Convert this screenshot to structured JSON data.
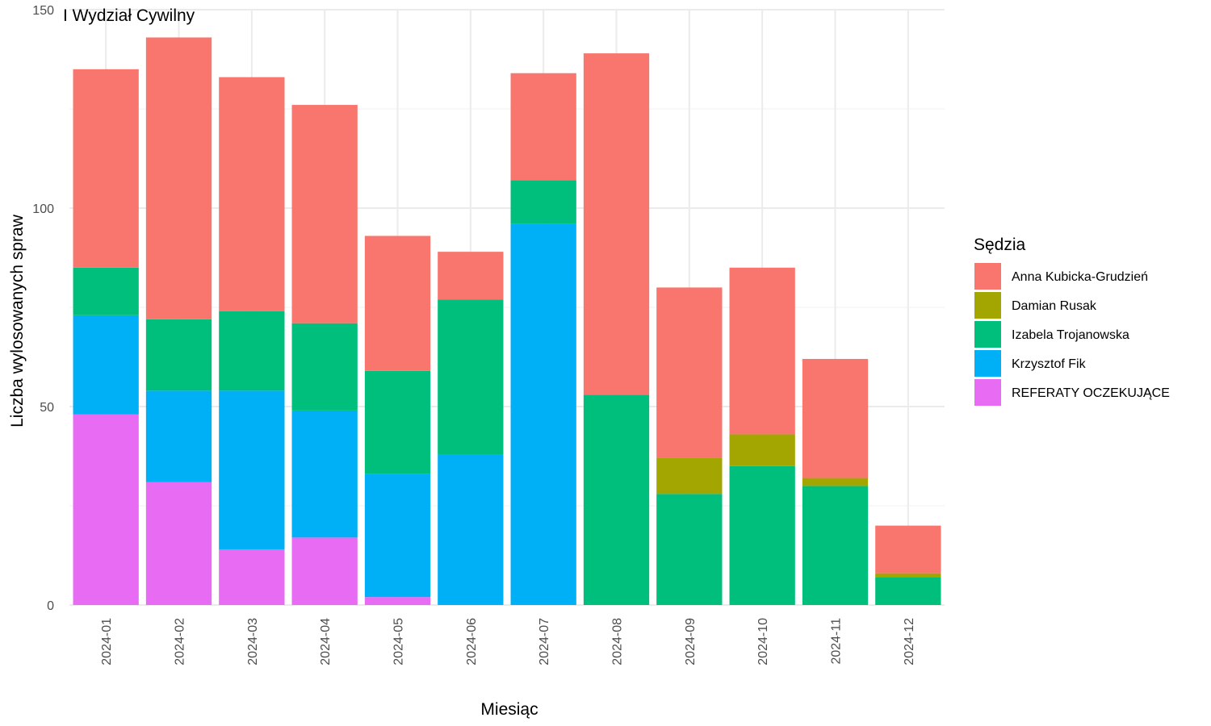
{
  "chart_data": {
    "type": "bar",
    "stacked": true,
    "title": "I Wydział Cywilny",
    "xlabel": "Miesiąc",
    "ylabel": "Liczba wylosowanych spraw",
    "ylim": [
      0,
      150
    ],
    "yticks": [
      0,
      50,
      100,
      150
    ],
    "grid": true,
    "legend_position": "right",
    "legend_title": "Sędzia",
    "categories": [
      "2024-01",
      "2024-02",
      "2024-03",
      "2024-04",
      "2024-05",
      "2024-06",
      "2024-07",
      "2024-08",
      "2024-09",
      "2024-10",
      "2024-11",
      "2024-12"
    ],
    "series": [
      {
        "name": "REFERATY OCZEKUJĄCE",
        "color": "#E76BF3",
        "values": [
          48,
          31,
          14,
          17,
          2,
          0,
          0,
          0,
          0,
          0,
          0,
          0
        ]
      },
      {
        "name": "Krzysztof Fik",
        "color": "#00B0F6",
        "values": [
          25,
          23,
          40,
          32,
          31,
          38,
          96,
          0,
          0,
          0,
          0,
          0
        ]
      },
      {
        "name": "Izabela Trojanowska",
        "color": "#00BF7D",
        "values": [
          12,
          18,
          20,
          22,
          26,
          39,
          11,
          53,
          28,
          35,
          30,
          7
        ]
      },
      {
        "name": "Damian Rusak",
        "color": "#A3A500",
        "values": [
          0,
          0,
          0,
          0,
          0,
          0,
          0,
          0,
          9,
          8,
          2,
          1
        ]
      },
      {
        "name": "Anna Kubicka-Grudzień",
        "color": "#F8766D",
        "values": [
          50,
          71,
          59,
          55,
          34,
          12,
          27,
          86,
          43,
          42,
          30,
          12
        ]
      }
    ],
    "legend_order": [
      "Anna Kubicka-Grudzień",
      "Damian Rusak",
      "Izabela Trojanowska",
      "Krzysztof Fik",
      "REFERATY OCZEKUJĄCE"
    ]
  }
}
